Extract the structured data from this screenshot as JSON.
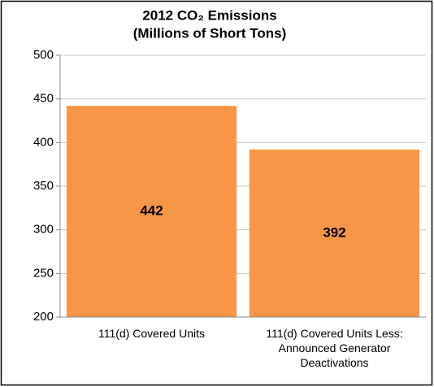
{
  "chart_data": {
    "type": "bar",
    "title": "2012 CO₂ Emissions",
    "subtitle": "(Millions of Short Tons)",
    "categories": [
      "111(d) Covered Units",
      "111(d) Covered Units Less: Announced Generator Deactivations"
    ],
    "values": [
      442,
      392
    ],
    "color": "#f79646",
    "ylim": [
      200,
      500
    ],
    "yticks": [
      200,
      250,
      300,
      350,
      400,
      450,
      500
    ],
    "grid": true
  }
}
